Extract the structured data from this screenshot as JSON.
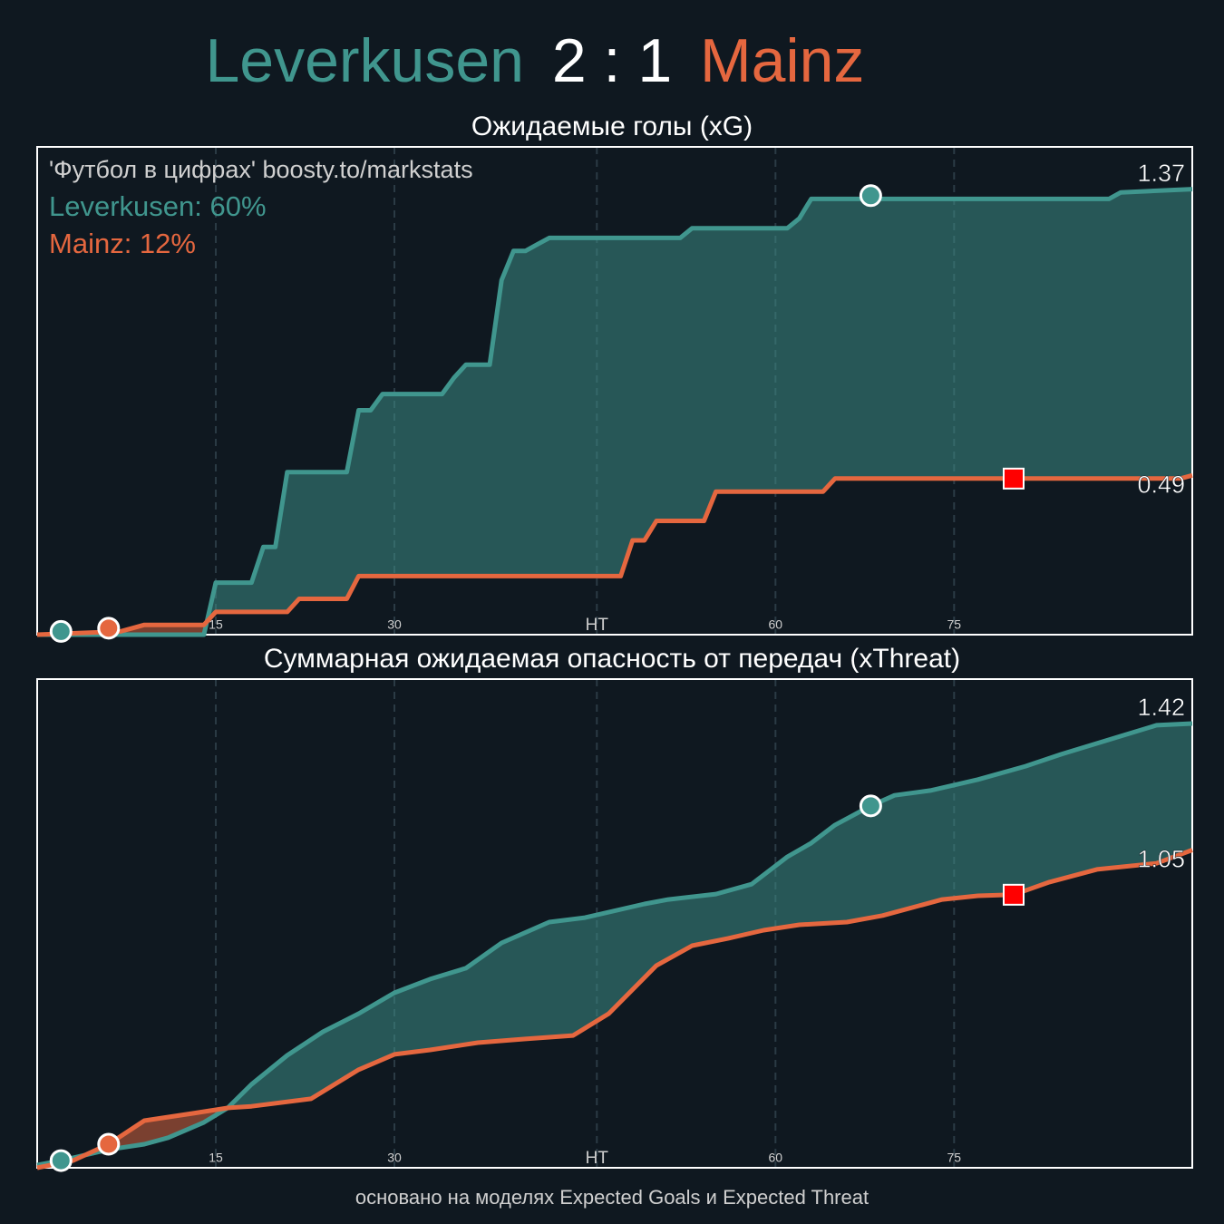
{
  "header": {
    "home": "Leverkusen",
    "score": "2 : 1",
    "away": "Mainz"
  },
  "footer": "основано на моделях Expected Goals и Expected Threat",
  "chart_data": [
    {
      "type": "line",
      "title": "Ожидаемые голы (xG)",
      "annotations": [
        "'Футбол в цифрах' boosty.to/markstats"
      ],
      "xlim": [
        0,
        97
      ],
      "xticks": [
        15,
        30,
        {
          "value": 47,
          "label": "HT"
        },
        {
          "value": 62,
          "label": "60"
        },
        {
          "value": 77,
          "label": "75"
        }
      ],
      "ylim": [
        0,
        1.5
      ],
      "grid": true,
      "series": [
        {
          "name": "Leverkusen",
          "color": "#40968e",
          "label": "Leverkusen: 60%",
          "x": [
            0,
            14,
            15,
            18,
            19,
            20,
            21,
            26,
            27,
            28,
            29,
            34,
            35,
            36,
            38,
            39,
            40,
            41,
            42,
            43,
            54,
            55,
            63,
            64,
            65,
            90,
            91,
            97
          ],
          "values": [
            0,
            0,
            0.16,
            0.16,
            0.27,
            0.27,
            0.5,
            0.5,
            0.69,
            0.69,
            0.74,
            0.74,
            0.79,
            0.83,
            0.83,
            1.09,
            1.18,
            1.18,
            1.2,
            1.22,
            1.22,
            1.25,
            1.25,
            1.28,
            1.34,
            1.34,
            1.36,
            1.37
          ],
          "marker_x": [
            2,
            70
          ],
          "marker_values": [
            0.01,
            1.35
          ]
        },
        {
          "name": "Mainz",
          "color": "#e5673f",
          "label": "Mainz: 12%",
          "x": [
            0,
            7,
            8,
            9,
            14,
            15,
            21,
            22,
            26,
            27,
            49,
            50,
            51,
            52,
            56,
            57,
            66,
            67,
            96,
            97
          ],
          "values": [
            0,
            0.01,
            0.02,
            0.03,
            0.03,
            0.07,
            0.07,
            0.11,
            0.11,
            0.18,
            0.18,
            0.29,
            0.29,
            0.35,
            0.35,
            0.44,
            0.44,
            0.48,
            0.48,
            0.49
          ],
          "marker_x": [
            6
          ],
          "marker_values": [
            0.02
          ],
          "card_x": [
            82
          ],
          "card_values": [
            0.48
          ],
          "card_color": "#ff0000"
        }
      ]
    },
    {
      "type": "line",
      "title": "Суммарная ожидаемая опасность от передач (xThreat)",
      "xlim": [
        0,
        97
      ],
      "xticks": [
        15,
        30,
        {
          "value": 47,
          "label": "HT"
        },
        {
          "value": 62,
          "label": "60"
        },
        {
          "value": 77,
          "label": "75"
        }
      ],
      "ylim": [
        0.12,
        1.55
      ],
      "grid": true,
      "series": [
        {
          "name": "Leverkusen",
          "color": "#40968e",
          "x": [
            0,
            2,
            6,
            9,
            11,
            14,
            16,
            18,
            21,
            24,
            27,
            30,
            33,
            36,
            39,
            43,
            46,
            51,
            53,
            57,
            60,
            63,
            65,
            67,
            70,
            72,
            75,
            79,
            83,
            86,
            91,
            94,
            97
          ],
          "values": [
            0.128,
            0.141,
            0.173,
            0.189,
            0.208,
            0.253,
            0.295,
            0.364,
            0.449,
            0.518,
            0.571,
            0.632,
            0.672,
            0.704,
            0.778,
            0.839,
            0.852,
            0.892,
            0.905,
            0.921,
            0.95,
            1.03,
            1.07,
            1.123,
            1.179,
            1.21,
            1.224,
            1.256,
            1.295,
            1.33,
            1.383,
            1.415,
            1.42
          ],
          "marker_x": [
            2,
            70
          ],
          "marker_values": [
            0.141,
            1.179
          ]
        },
        {
          "name": "Mainz",
          "color": "#e5673f",
          "x": [
            0,
            3,
            6,
            9,
            13,
            16,
            18,
            23,
            27,
            30,
            33,
            37,
            41,
            45,
            48,
            52,
            55,
            58,
            61,
            64,
            68,
            71,
            76,
            79,
            82,
            85,
            89,
            94,
            97
          ],
          "values": [
            0.12,
            0.141,
            0.189,
            0.258,
            0.279,
            0.295,
            0.3,
            0.322,
            0.407,
            0.452,
            0.465,
            0.486,
            0.497,
            0.507,
            0.571,
            0.712,
            0.77,
            0.791,
            0.815,
            0.831,
            0.839,
            0.858,
            0.905,
            0.916,
            0.919,
            0.956,
            0.993,
            1.011,
            1.05
          ],
          "marker_x": [
            6
          ],
          "marker_values": [
            0.189
          ],
          "card_x": [
            82
          ],
          "card_values": [
            0.919
          ],
          "card_color": "#ff0000"
        }
      ]
    }
  ]
}
